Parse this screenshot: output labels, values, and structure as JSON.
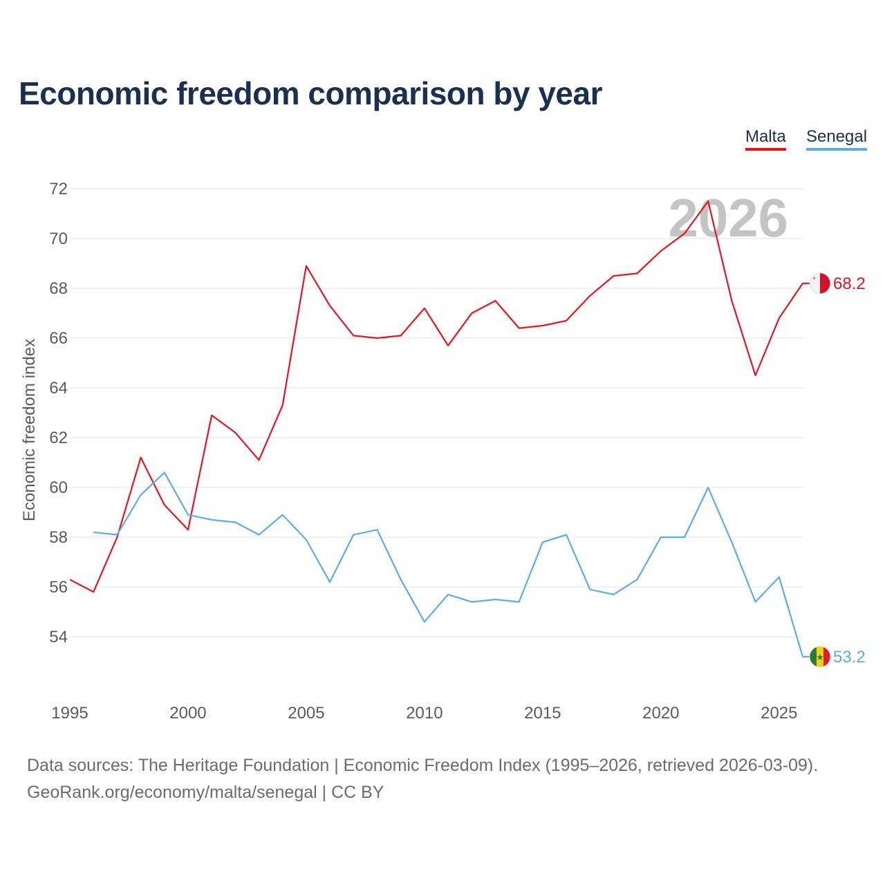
{
  "title": "Economic freedom comparison by year",
  "legend": [
    {
      "label": "Malta",
      "color": "#e8131c"
    },
    {
      "label": "Senegal",
      "color": "#5ea9e8"
    }
  ],
  "watermark_year": "2026",
  "source_lines": [
    "Data sources: The Heritage Foundation | Economic Freedom Index (1995–2026, retrieved 2026-03-09).",
    "GeoRank.org/economy/malta/senegal | CC BY"
  ],
  "chart_data": {
    "type": "line",
    "title": "Economic freedom comparison by year",
    "xlabel": "",
    "ylabel": "Economic freedom index",
    "xlim": [
      1995,
      2026
    ],
    "ylim": [
      52.5,
      72
    ],
    "x_ticks": [
      1995,
      2000,
      2005,
      2010,
      2015,
      2020,
      2025
    ],
    "y_ticks": [
      54,
      56,
      58,
      60,
      62,
      64,
      66,
      68,
      70,
      72
    ],
    "grid": true,
    "legend_position": "top-right",
    "series": [
      {
        "name": "Malta",
        "color": "#e8131c",
        "end_label": "68.2",
        "flag": "malta-flag",
        "x": [
          1995,
          1996,
          1997,
          1998,
          1999,
          2000,
          2001,
          2002,
          2003,
          2004,
          2005,
          2006,
          2007,
          2008,
          2009,
          2010,
          2011,
          2012,
          2013,
          2014,
          2015,
          2016,
          2017,
          2018,
          2019,
          2020,
          2021,
          2022,
          2023,
          2024,
          2025,
          2026
        ],
        "values": [
          56.3,
          55.8,
          58.0,
          61.2,
          59.3,
          58.3,
          62.9,
          62.2,
          61.1,
          63.3,
          68.9,
          67.3,
          66.1,
          66.0,
          66.1,
          67.2,
          65.7,
          67.0,
          67.5,
          66.4,
          66.5,
          66.7,
          67.7,
          68.5,
          68.6,
          69.5,
          70.2,
          71.5,
          67.5,
          64.5,
          66.8,
          68.2
        ]
      },
      {
        "name": "Senegal",
        "color": "#5ea9e8",
        "end_label": "53.2",
        "flag": "senegal-flag",
        "x": [
          1996,
          1997,
          1998,
          1999,
          2000,
          2001,
          2002,
          2003,
          2004,
          2005,
          2006,
          2007,
          2008,
          2009,
          2010,
          2011,
          2012,
          2013,
          2014,
          2015,
          2016,
          2017,
          2018,
          2019,
          2020,
          2021,
          2022,
          2023,
          2024,
          2025,
          2026
        ],
        "values": [
          58.2,
          58.1,
          59.7,
          60.6,
          58.9,
          58.7,
          58.6,
          58.1,
          58.9,
          57.9,
          56.2,
          58.1,
          58.3,
          56.3,
          54.6,
          55.7,
          55.4,
          55.5,
          55.4,
          57.8,
          58.1,
          55.9,
          55.7,
          56.3,
          58.0,
          58.0,
          60.0,
          57.8,
          55.4,
          56.4,
          53.2
        ]
      }
    ]
  }
}
